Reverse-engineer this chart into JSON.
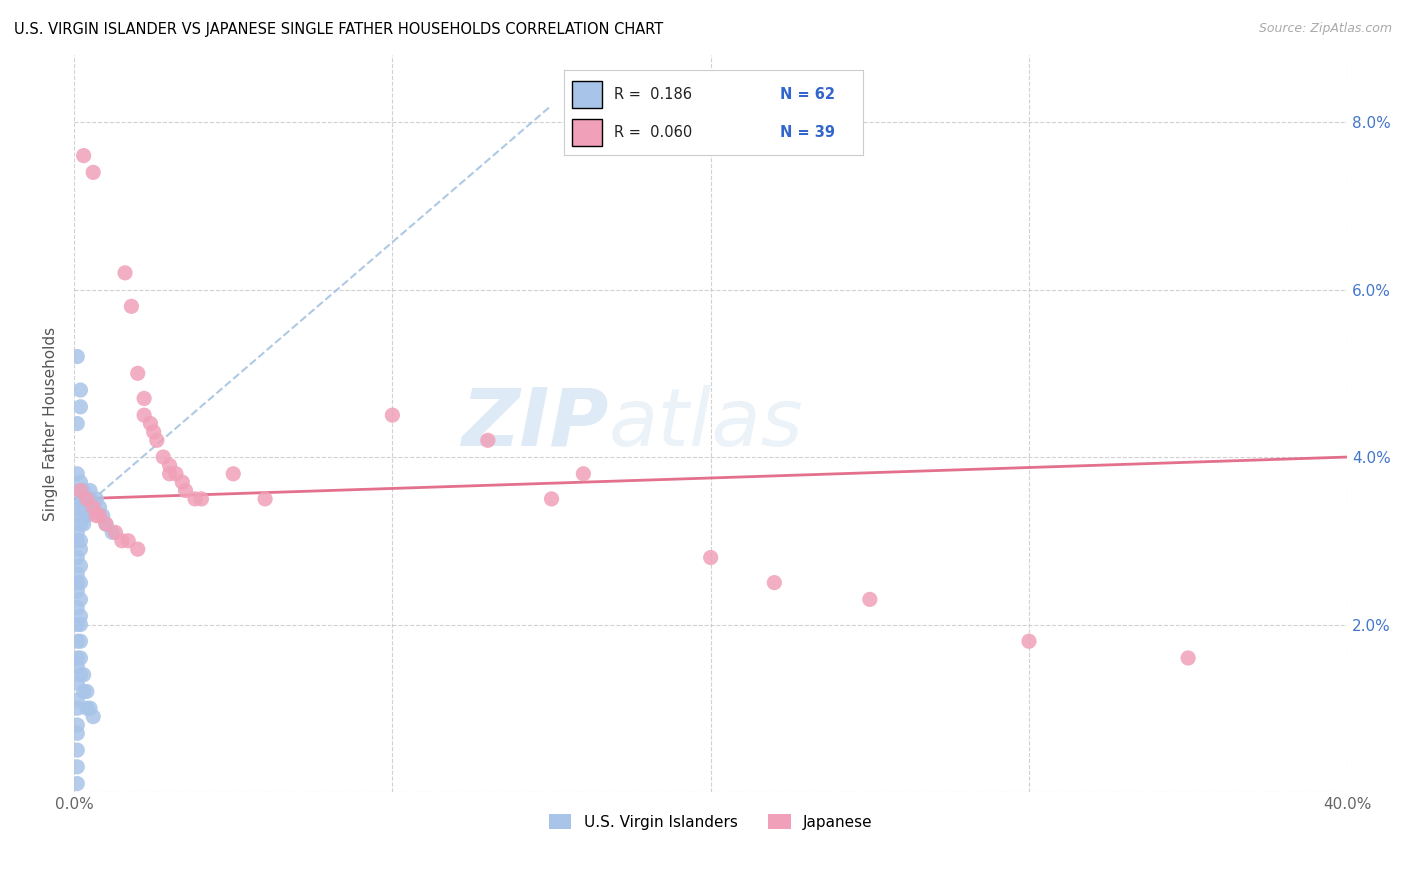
{
  "title": "U.S. VIRGIN ISLANDER VS JAPANESE SINGLE FATHER HOUSEHOLDS CORRELATION CHART",
  "source": "Source: ZipAtlas.com",
  "ylabel": "Single Father Households",
  "xlim": [
    0.0,
    0.4
  ],
  "ylim": [
    0.0,
    0.088
  ],
  "xtick_pos": [
    0.0,
    0.1,
    0.2,
    0.3,
    0.4
  ],
  "xtick_labels": [
    "0.0%",
    "",
    "",
    "",
    "40.0%"
  ],
  "ytick_pos": [
    0.0,
    0.02,
    0.04,
    0.06,
    0.08
  ],
  "ytick_labels": [
    "",
    "2.0%",
    "4.0%",
    "6.0%",
    "8.0%"
  ],
  "watermark_zip": "ZIP",
  "watermark_atlas": "atlas",
  "legend_r1": "R =  0.186",
  "legend_n1": "N = 62",
  "legend_r2": "R =  0.060",
  "legend_n2": "N = 39",
  "color_blue": "#a8c4e8",
  "color_pink": "#f0a0b8",
  "trendline_blue_color": "#a0c0e0",
  "trendline_pink_color": "#e06080",
  "blue_scatter": [
    [
      0.001,
      0.052
    ],
    [
      0.002,
      0.048
    ],
    [
      0.002,
      0.046
    ],
    [
      0.001,
      0.044
    ],
    [
      0.001,
      0.038
    ],
    [
      0.002,
      0.037
    ],
    [
      0.002,
      0.036
    ],
    [
      0.001,
      0.035
    ],
    [
      0.002,
      0.034
    ],
    [
      0.001,
      0.033
    ],
    [
      0.002,
      0.032
    ],
    [
      0.001,
      0.031
    ],
    [
      0.002,
      0.03
    ],
    [
      0.001,
      0.03
    ],
    [
      0.002,
      0.029
    ],
    [
      0.001,
      0.028
    ],
    [
      0.002,
      0.027
    ],
    [
      0.001,
      0.026
    ],
    [
      0.002,
      0.025
    ],
    [
      0.001,
      0.025
    ],
    [
      0.001,
      0.024
    ],
    [
      0.002,
      0.023
    ],
    [
      0.001,
      0.022
    ],
    [
      0.002,
      0.021
    ],
    [
      0.003,
      0.036
    ],
    [
      0.003,
      0.035
    ],
    [
      0.003,
      0.034
    ],
    [
      0.003,
      0.033
    ],
    [
      0.003,
      0.032
    ],
    [
      0.004,
      0.035
    ],
    [
      0.004,
      0.034
    ],
    [
      0.004,
      0.033
    ],
    [
      0.005,
      0.036
    ],
    [
      0.005,
      0.035
    ],
    [
      0.006,
      0.034
    ],
    [
      0.007,
      0.035
    ],
    [
      0.008,
      0.034
    ],
    [
      0.009,
      0.033
    ],
    [
      0.01,
      0.032
    ],
    [
      0.012,
      0.031
    ],
    [
      0.001,
      0.018
    ],
    [
      0.001,
      0.016
    ],
    [
      0.001,
      0.015
    ],
    [
      0.001,
      0.013
    ],
    [
      0.001,
      0.011
    ],
    [
      0.001,
      0.01
    ],
    [
      0.001,
      0.008
    ],
    [
      0.001,
      0.007
    ],
    [
      0.001,
      0.005
    ],
    [
      0.001,
      0.003
    ],
    [
      0.001,
      0.001
    ],
    [
      0.002,
      0.018
    ],
    [
      0.002,
      0.016
    ],
    [
      0.002,
      0.014
    ],
    [
      0.003,
      0.014
    ],
    [
      0.003,
      0.012
    ],
    [
      0.004,
      0.012
    ],
    [
      0.004,
      0.01
    ],
    [
      0.005,
      0.01
    ],
    [
      0.006,
      0.009
    ],
    [
      0.001,
      0.02
    ],
    [
      0.002,
      0.02
    ]
  ],
  "pink_scatter": [
    [
      0.003,
      0.076
    ],
    [
      0.006,
      0.074
    ],
    [
      0.016,
      0.062
    ],
    [
      0.018,
      0.058
    ],
    [
      0.02,
      0.05
    ],
    [
      0.022,
      0.047
    ],
    [
      0.022,
      0.045
    ],
    [
      0.024,
      0.044
    ],
    [
      0.025,
      0.043
    ],
    [
      0.026,
      0.042
    ],
    [
      0.028,
      0.04
    ],
    [
      0.03,
      0.039
    ],
    [
      0.03,
      0.038
    ],
    [
      0.032,
      0.038
    ],
    [
      0.034,
      0.037
    ],
    [
      0.035,
      0.036
    ],
    [
      0.038,
      0.035
    ],
    [
      0.04,
      0.035
    ],
    [
      0.002,
      0.036
    ],
    [
      0.004,
      0.035
    ],
    [
      0.006,
      0.034
    ],
    [
      0.007,
      0.033
    ],
    [
      0.008,
      0.033
    ],
    [
      0.01,
      0.032
    ],
    [
      0.013,
      0.031
    ],
    [
      0.015,
      0.03
    ],
    [
      0.017,
      0.03
    ],
    [
      0.02,
      0.029
    ],
    [
      0.05,
      0.038
    ],
    [
      0.06,
      0.035
    ],
    [
      0.1,
      0.045
    ],
    [
      0.13,
      0.042
    ],
    [
      0.15,
      0.035
    ],
    [
      0.16,
      0.038
    ],
    [
      0.2,
      0.028
    ],
    [
      0.22,
      0.025
    ],
    [
      0.25,
      0.023
    ],
    [
      0.3,
      0.018
    ],
    [
      0.35,
      0.016
    ]
  ],
  "blue_trend_x": [
    0.0,
    0.15
  ],
  "blue_trend_y": [
    0.033,
    0.082
  ],
  "pink_trend_x": [
    0.0,
    0.4
  ],
  "pink_trend_y": [
    0.035,
    0.04
  ],
  "bottom_legend_labels": [
    "U.S. Virgin Islanders",
    "Japanese"
  ]
}
